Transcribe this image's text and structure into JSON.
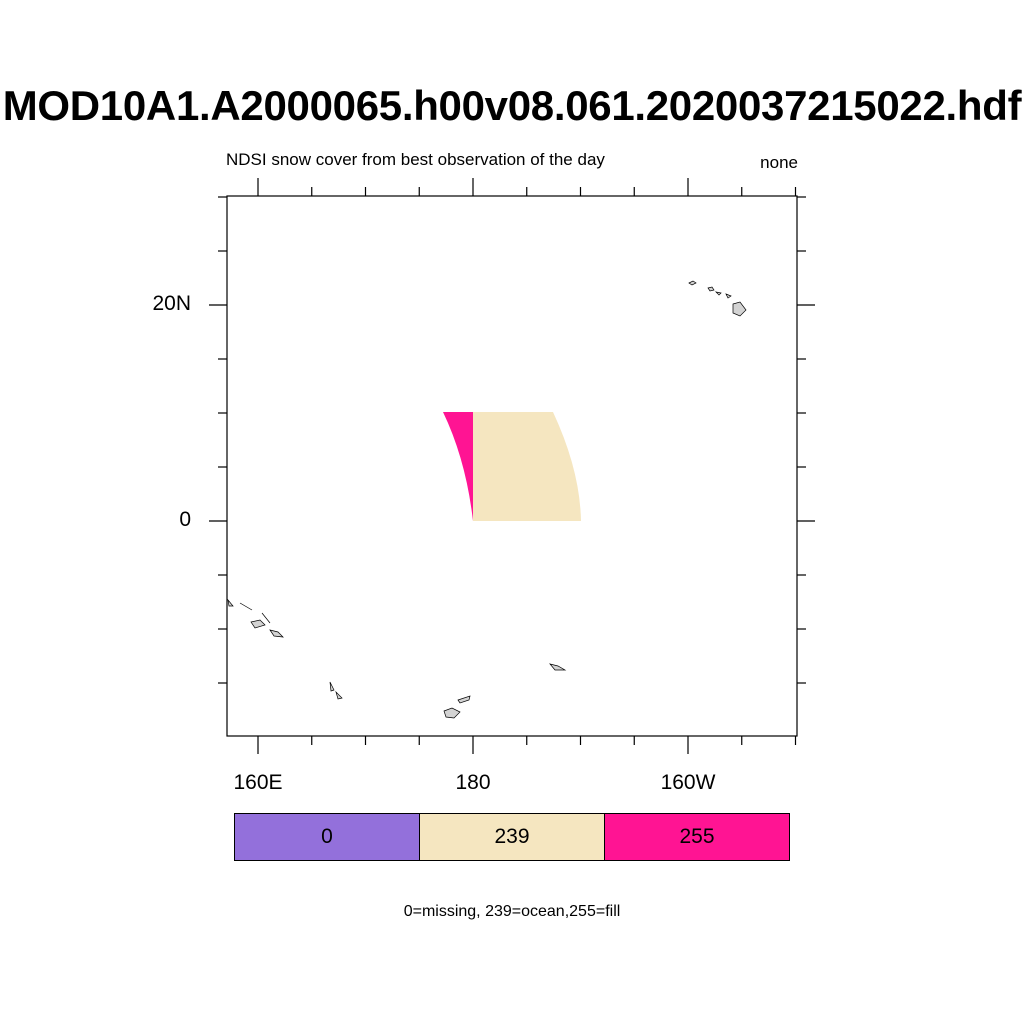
{
  "title": "MOD10A1.A2000065.h00v08.061.2020037215022.hdf",
  "left_subtitle": "NDSI snow cover from best observation of the day",
  "right_subtitle": "none",
  "lat_ticks": [
    {
      "value": 20,
      "label": "20N"
    },
    {
      "value": 0,
      "label": "0"
    }
  ],
  "lon_ticks": [
    {
      "value": 160,
      "label": "160E"
    },
    {
      "value": 180,
      "label": "180"
    },
    {
      "value": 200,
      "label": "160W"
    }
  ],
  "legend": {
    "items": [
      {
        "value": "0",
        "color": "#9370DB"
      },
      {
        "value": "239",
        "color": "#F5E6C0"
      },
      {
        "value": "255",
        "color": "#FF1493"
      }
    ],
    "note": "0=missing, 239=ocean,255=fill"
  },
  "colors": {
    "ocean": "#F5E6C0",
    "fill": "#FF1493",
    "land": "#d3d3d3"
  }
}
